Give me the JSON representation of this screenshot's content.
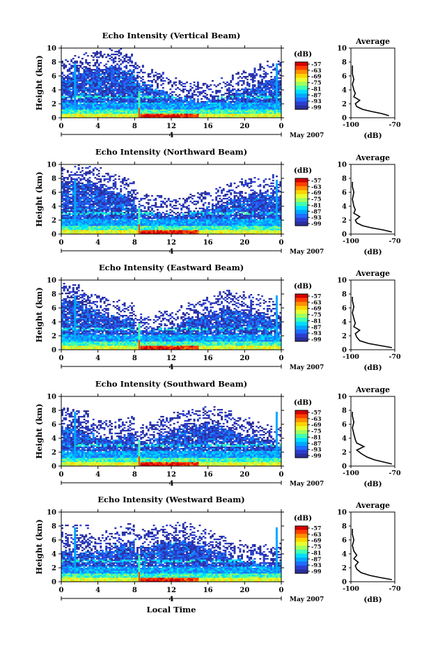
{
  "figure": {
    "x_title": "Local Time",
    "x_ticks": [
      "0",
      "4",
      "8",
      "12",
      "16",
      "20",
      "0"
    ],
    "day_label": "4",
    "month_label": "May 2007",
    "y_label": "Height (km)",
    "y_ticks": [
      "0",
      "2",
      "4",
      "6",
      "8",
      "10"
    ],
    "colorbar_unit": "(dB)",
    "colorbar_ticks": [
      "-57",
      "-63",
      "-69",
      "-75",
      "-81",
      "-87",
      "-93",
      "-99"
    ],
    "colorbar_colors": [
      "#d40000",
      "#ff4000",
      "#ff9000",
      "#ffd400",
      "#e8ff30",
      "#a0ff60",
      "#40ffb0",
      "#00e0ff",
      "#00a8ff",
      "#1f6dff",
      "#2a3fd0",
      "#2b2f9a"
    ],
    "avg_title": "Average",
    "avg_x_ticks": [
      "-100",
      "-70"
    ],
    "avg_xlabel": "(dB)"
  },
  "chart_data": [
    {
      "type": "heatmap",
      "title": "Echo Intensity (Vertical Beam)",
      "xlabel": "",
      "ylabel": "Height (km)",
      "xlim": [
        0,
        24
      ],
      "ylim": [
        0,
        10
      ],
      "colorbar_range_db": [
        -99,
        -57
      ],
      "spike_hour": 8.5,
      "avg_profile": {
        "title": "Average",
        "xlim": [
          -100,
          -70
        ],
        "xlabel": "(dB)",
        "points": [
          [
            -74,
            0.3
          ],
          [
            -79,
            0.6
          ],
          [
            -86,
            0.9
          ],
          [
            -92,
            1.2
          ],
          [
            -96,
            1.6
          ],
          [
            -97,
            2.0
          ],
          [
            -94,
            2.5
          ],
          [
            -98,
            3.0
          ],
          [
            -97,
            3.5
          ],
          [
            -98,
            4.0
          ],
          [
            -99,
            4.8
          ],
          [
            -98,
            5.5
          ],
          [
            -99,
            6.3
          ],
          [
            -99,
            7.5
          ]
        ]
      }
    },
    {
      "type": "heatmap",
      "title": "Echo Intensity (Northward Beam)",
      "xlabel": "",
      "ylabel": "Height (km)",
      "xlim": [
        0,
        24
      ],
      "ylim": [
        0,
        10
      ],
      "colorbar_range_db": [
        -99,
        -57
      ],
      "spike_hour": 8.5,
      "avg_profile": {
        "title": "Average",
        "xlim": [
          -100,
          -70
        ],
        "xlabel": "(dB)",
        "points": [
          [
            -72,
            0.3
          ],
          [
            -78,
            0.6
          ],
          [
            -86,
            0.9
          ],
          [
            -92,
            1.2
          ],
          [
            -96,
            1.6
          ],
          [
            -97,
            2.0
          ],
          [
            -94,
            2.5
          ],
          [
            -98,
            3.0
          ],
          [
            -97,
            3.5
          ],
          [
            -98,
            4.0
          ],
          [
            -99,
            5.0
          ],
          [
            -98,
            6.0
          ],
          [
            -99,
            6.8
          ],
          [
            -99,
            7.5
          ]
        ]
      }
    },
    {
      "type": "heatmap",
      "title": "Echo Intensity (Eastward Beam)",
      "xlabel": "",
      "ylabel": "Height (km)",
      "xlim": [
        0,
        24
      ],
      "ylim": [
        0,
        10
      ],
      "colorbar_range_db": [
        -99,
        -57
      ],
      "spike_hour": 8.5,
      "avg_profile": {
        "title": "Average",
        "xlim": [
          -100,
          -70
        ],
        "xlabel": "(dB)",
        "points": [
          [
            -72,
            0.3
          ],
          [
            -80,
            0.6
          ],
          [
            -88,
            0.9
          ],
          [
            -94,
            1.3
          ],
          [
            -96,
            1.8
          ],
          [
            -97,
            2.3
          ],
          [
            -94,
            2.8
          ],
          [
            -98,
            3.3
          ],
          [
            -97,
            3.8
          ],
          [
            -98,
            4.5
          ],
          [
            -99,
            5.3
          ],
          [
            -98,
            6.2
          ],
          [
            -99,
            7.0
          ],
          [
            -99,
            7.6
          ]
        ]
      }
    },
    {
      "type": "heatmap",
      "title": "Echo Intensity (Southward Beam)",
      "xlabel": "",
      "ylabel": "Height (km)",
      "xlim": [
        0,
        24
      ],
      "ylim": [
        0,
        10
      ],
      "colorbar_range_db": [
        -99,
        -57
      ],
      "spike_hour": 8.5,
      "avg_profile": {
        "title": "Average",
        "xlim": [
          -100,
          -70
        ],
        "xlabel": "(dB)",
        "points": [
          [
            -72,
            0.3
          ],
          [
            -78,
            0.6
          ],
          [
            -84,
            0.9
          ],
          [
            -89,
            1.3
          ],
          [
            -93,
            1.8
          ],
          [
            -96,
            2.3
          ],
          [
            -91,
            2.8
          ],
          [
            -96,
            3.3
          ],
          [
            -97,
            3.8
          ],
          [
            -98,
            4.6
          ],
          [
            -99,
            5.5
          ],
          [
            -98,
            6.3
          ],
          [
            -99,
            7.2
          ],
          [
            -99,
            7.8
          ]
        ]
      }
    },
    {
      "type": "heatmap",
      "title": "Echo Intensity (Westward Beam)",
      "xlabel": "Local Time",
      "ylabel": "Height (km)",
      "xlim": [
        0,
        24
      ],
      "ylim": [
        0,
        10
      ],
      "colorbar_range_db": [
        -99,
        -57
      ],
      "spike_hour": 8.5,
      "avg_profile": {
        "title": "Average",
        "xlim": [
          -100,
          -70
        ],
        "xlabel": "(dB)",
        "points": [
          [
            -72,
            0.3
          ],
          [
            -80,
            0.6
          ],
          [
            -87,
            0.9
          ],
          [
            -93,
            1.3
          ],
          [
            -96,
            1.8
          ],
          [
            -97,
            2.3
          ],
          [
            -95,
            2.8
          ],
          [
            -98,
            3.3
          ],
          [
            -96,
            3.8
          ],
          [
            -98,
            4.4
          ],
          [
            -99,
            5.2
          ],
          [
            -98,
            6.0
          ],
          [
            -99,
            6.8
          ],
          [
            -99,
            7.6
          ]
        ]
      }
    }
  ]
}
